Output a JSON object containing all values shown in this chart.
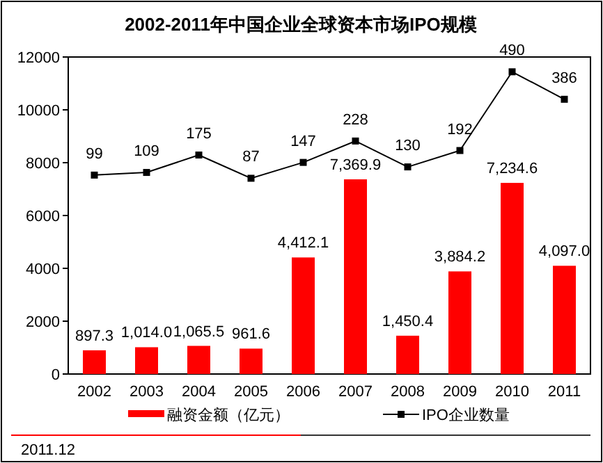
{
  "chart_data": {
    "type": "bar",
    "title": "2002-2011年中国企业全球资本市场IPO规模",
    "categories": [
      "2002",
      "2003",
      "2004",
      "2005",
      "2006",
      "2007",
      "2008",
      "2009",
      "2010",
      "2011"
    ],
    "series": [
      {
        "name": "融资金额（亿元）",
        "color": "#ff0000",
        "values": [
          897.3,
          1014.0,
          1065.5,
          961.6,
          4412.1,
          7369.9,
          1450.4,
          3884.2,
          7234.6,
          4097.0
        ],
        "value_labels": [
          "897.3",
          "1,014.0",
          "1,065.5",
          "961.6",
          "4,412.1",
          "7,369.9",
          "1,450.4",
          "3,884.2",
          "7,234.6",
          "4,097.0"
        ]
      },
      {
        "name": "IPO企业数量",
        "type": "line",
        "axis": "y2",
        "color": "#000000",
        "marker": "square",
        "values": [
          99,
          109,
          175,
          87,
          147,
          228,
          130,
          192,
          490,
          386
        ]
      }
    ],
    "ylim": [
      0,
      12000
    ],
    "yticks": [
      0,
      2000,
      4000,
      6000,
      8000,
      10000,
      12000
    ],
    "y2lim": [
      -654,
      546
    ],
    "data_labels": true,
    "legend": "bottom",
    "grid": false,
    "annotations": [
      "2011.12"
    ]
  }
}
